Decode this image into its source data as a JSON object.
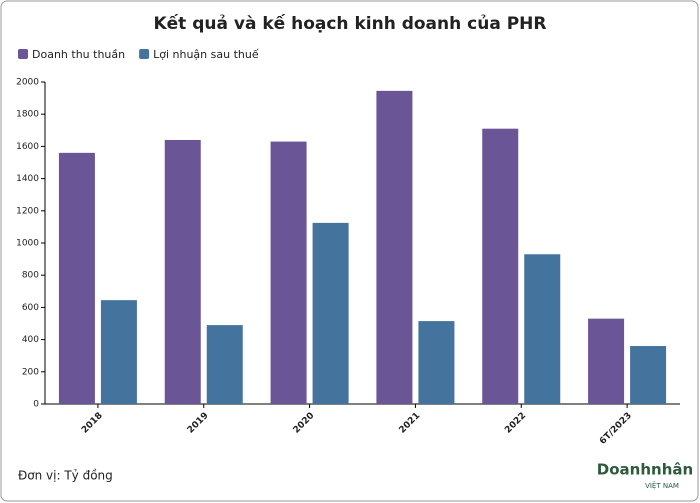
{
  "chart_data": {
    "type": "bar",
    "title": "Kết quả và kế hoạch kinh doanh của PHR",
    "categories": [
      "2018",
      "2019",
      "2020",
      "2021",
      "2022",
      "6T/2023"
    ],
    "series": [
      {
        "name": "Doanh thu thuần",
        "color": "#6a5596",
        "values": [
          1560,
          1640,
          1630,
          1945,
          1710,
          530
        ]
      },
      {
        "name": "Lợi nhuận sau thuế",
        "color": "#44749d",
        "values": [
          645,
          490,
          1125,
          515,
          930,
          360
        ]
      }
    ],
    "ylim": [
      0,
      2000
    ],
    "yticks": [
      0,
      200,
      400,
      600,
      800,
      1000,
      1200,
      1400,
      1600,
      1800,
      2000
    ],
    "legend": "top-left",
    "note": "Đơn vị: Tỷ đồng",
    "logo": {
      "name": "Doanhnhân",
      "sub": "VIỆT NAM"
    }
  }
}
